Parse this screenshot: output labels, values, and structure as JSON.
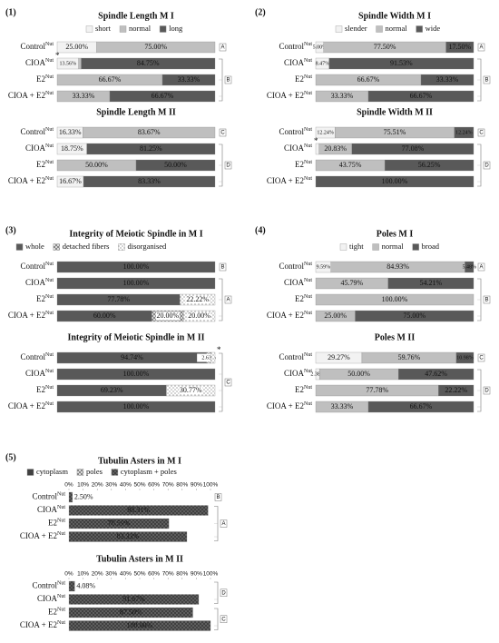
{
  "chart_data": [
    {
      "type": "bar",
      "panel": "(1)",
      "title": "Spindle Length M I",
      "show_legend": true,
      "xlim": [
        0,
        100
      ],
      "categories": [
        "Control",
        "CIOA",
        "E2",
        "CIOA + E2"
      ],
      "category_superscript": "Nut",
      "series": [
        {
          "name": "short",
          "color": "#f2f2f2",
          "values": [
            25.0,
            13.56,
            0,
            0
          ],
          "value_labels": [
            "25.00%",
            "13.56%",
            null,
            null
          ]
        },
        {
          "name": "normal",
          "color": "#bfbfbf",
          "values": [
            75.0,
            1.69,
            66.67,
            33.33
          ],
          "value_labels": [
            "75.00%",
            null,
            "66.67%",
            "33.33%"
          ]
        },
        {
          "name": "long",
          "color": "#595959",
          "values": [
            0,
            84.75,
            33.33,
            66.67
          ],
          "value_labels": [
            null,
            "84.75%",
            "33.33%",
            "66.67%"
          ]
        }
      ],
      "markers": [
        null,
        "*",
        null,
        null
      ],
      "letters": [
        "A",
        "B",
        "B",
        "B"
      ]
    },
    {
      "type": "bar",
      "title": "Spindle Length M II",
      "xlim": [
        0,
        100
      ],
      "categories": [
        "Control",
        "CIOA",
        "E2",
        "CIOA + E2"
      ],
      "category_superscript": "Nut",
      "series": [
        {
          "name": "short",
          "color": "#f2f2f2",
          "values": [
            16.33,
            18.75,
            0,
            16.67
          ],
          "value_labels": [
            "16.33%",
            "18.75%",
            null,
            "16.67%"
          ]
        },
        {
          "name": "normal",
          "color": "#bfbfbf",
          "values": [
            83.67,
            0,
            50.0,
            0
          ],
          "value_labels": [
            "83.67%",
            null,
            "50.00%",
            null
          ]
        },
        {
          "name": "long",
          "color": "#595959",
          "values": [
            0,
            81.25,
            50.0,
            83.33
          ],
          "value_labels": [
            null,
            "81.25%",
            "50.00%",
            "83.33%"
          ]
        }
      ],
      "letters": [
        "C",
        "D",
        "D",
        "D"
      ]
    },
    {
      "type": "bar",
      "panel": "(2)",
      "title": "Spindle Width M I",
      "show_legend": true,
      "xlim": [
        0,
        100
      ],
      "categories": [
        "Control",
        "CIOA",
        "E2",
        "CIOA + E2"
      ],
      "category_superscript": "Nut",
      "series": [
        {
          "name": "slender",
          "color": "#f2f2f2",
          "values": [
            5.0,
            8.47,
            0,
            0
          ],
          "value_labels": [
            "5.00%",
            "8.47%",
            null,
            null
          ]
        },
        {
          "name": "normal",
          "color": "#bfbfbf",
          "values": [
            77.5,
            0,
            66.67,
            33.33
          ],
          "value_labels": [
            "77.50%",
            null,
            "66.67%",
            "33.33%"
          ]
        },
        {
          "name": "wide",
          "color": "#595959",
          "values": [
            17.5,
            91.53,
            33.33,
            66.67
          ],
          "value_labels": [
            "17.50%",
            "91.53%",
            "33.33%",
            "66.67%"
          ]
        }
      ],
      "letters": [
        "A",
        "B",
        "B",
        "B"
      ]
    },
    {
      "type": "bar",
      "title": "Spindle Width M II",
      "xlim": [
        0,
        100
      ],
      "categories": [
        "Control",
        "CIOA",
        "E2",
        "CIOA + E2"
      ],
      "category_superscript": "Nut",
      "series": [
        {
          "name": "slender",
          "color": "#f2f2f2",
          "values": [
            12.24,
            2.08,
            0,
            0
          ],
          "value_labels": [
            "12.24%",
            null,
            null,
            null
          ]
        },
        {
          "name": "normal",
          "color": "#bfbfbf",
          "values": [
            75.51,
            20.83,
            43.75,
            0
          ],
          "value_labels": [
            "75.51%",
            "20.83%",
            "43.75%",
            null
          ]
        },
        {
          "name": "wide",
          "color": "#595959",
          "values": [
            12.24,
            77.08,
            56.25,
            100.0
          ],
          "value_labels": [
            "12.24%",
            "77.08%",
            "56.25%",
            "100.00%"
          ]
        }
      ],
      "markers": [
        null,
        "*",
        null,
        null
      ],
      "letters": [
        "C",
        "D",
        "D",
        "D"
      ]
    },
    {
      "type": "bar",
      "panel": "(3)",
      "title": "Integrity of Meiotic Spindle in M I",
      "show_legend": true,
      "xlim": [
        0,
        100
      ],
      "categories": [
        "Control",
        "CIOA",
        "E2",
        "CIOA + E2"
      ],
      "category_superscript": "Nut",
      "series": [
        {
          "name": "whole",
          "color": "#595959",
          "values": [
            100.0,
            100.0,
            77.78,
            60.0
          ],
          "value_labels": [
            "100.00%",
            "100.00%",
            "77.78%",
            "60.00%"
          ]
        },
        {
          "name": "detached fibers",
          "color": "#d9d9d9",
          "pattern": "hatch",
          "values": [
            0,
            0,
            0,
            20.0
          ],
          "value_labels": [
            null,
            null,
            null,
            "20.00%"
          ]
        },
        {
          "name": "disorganised",
          "color": "#ffffff",
          "pattern": "dots",
          "values": [
            0,
            0,
            22.22,
            20.0
          ],
          "value_labels": [
            null,
            null,
            "22.22%",
            "20.00%"
          ]
        }
      ],
      "letters": [
        "B",
        "A",
        "A",
        "A"
      ]
    },
    {
      "type": "bar",
      "title": "Integrity of Meiotic Spindle in M II",
      "xlim": [
        0,
        100
      ],
      "categories": [
        "Control",
        "CIOA",
        "E2",
        "CIOA + E2"
      ],
      "category_superscript": "Nut",
      "series": [
        {
          "name": "whole",
          "color": "#595959",
          "values": [
            94.74,
            100.0,
            69.23,
            100.0
          ],
          "value_labels": [
            "94.74%",
            "100.00%",
            "69.23%",
            "100.00%"
          ]
        },
        {
          "name": "detached fibers",
          "color": "#d9d9d9",
          "pattern": "hatch",
          "values": [
            2.63,
            0,
            0,
            0
          ],
          "value_labels": [
            "2.63%",
            null,
            null,
            null
          ]
        },
        {
          "name": "disorganised",
          "color": "#ffffff",
          "pattern": "dots",
          "values": [
            2.63,
            0,
            30.77,
            0
          ],
          "value_labels": [
            null,
            null,
            "30.77%",
            null
          ]
        }
      ],
      "markers": [
        "*",
        null,
        null,
        null
      ],
      "letters": [
        "C",
        "C",
        "C",
        "C"
      ]
    },
    {
      "type": "bar",
      "panel": "(4)",
      "title": "Poles M I",
      "show_legend": true,
      "xlim": [
        0,
        100
      ],
      "categories": [
        "Control",
        "CIOA",
        "E2",
        "CIOA + E2"
      ],
      "category_superscript": "Nut",
      "series": [
        {
          "name": "tight",
          "color": "#f2f2f2",
          "values": [
            9.59,
            0,
            0,
            0
          ],
          "value_labels": [
            "9.59%",
            null,
            null,
            null
          ]
        },
        {
          "name": "normal",
          "color": "#bfbfbf",
          "values": [
            84.93,
            45.79,
            100.0,
            25.0
          ],
          "value_labels": [
            "84.93%",
            "45.79%",
            "100.00%",
            "25.00%"
          ]
        },
        {
          "name": "broad",
          "color": "#595959",
          "values": [
            5.48,
            54.21,
            0,
            75.0
          ],
          "value_labels": [
            "5.48%",
            "54.21%",
            null,
            "75.00%"
          ]
        }
      ],
      "letters": [
        "A",
        "B",
        "B",
        "B"
      ]
    },
    {
      "type": "bar",
      "title": "Poles M II",
      "xlim": [
        0,
        100
      ],
      "categories": [
        "Control",
        "CIOA",
        "E2",
        "CIOA + E2"
      ],
      "category_superscript": "Nut",
      "series": [
        {
          "name": "tight",
          "color": "#f2f2f2",
          "values": [
            29.27,
            2.38,
            0,
            0
          ],
          "value_labels": [
            "29.27%",
            "2.38%",
            null,
            null
          ]
        },
        {
          "name": "normal",
          "color": "#bfbfbf",
          "values": [
            59.76,
            50.0,
            77.78,
            33.33
          ],
          "value_labels": [
            "59.76%",
            "50.00%",
            "77.78%",
            "33.33%"
          ]
        },
        {
          "name": "broad",
          "color": "#595959",
          "values": [
            10.98,
            47.62,
            22.22,
            66.67
          ],
          "value_labels": [
            "10.98%",
            "47.62%",
            "22.22%",
            "66.67%"
          ]
        }
      ],
      "letters": [
        "C",
        "D",
        "D",
        "D"
      ]
    },
    {
      "type": "bar",
      "panel": "(5)",
      "title": "Tubulin Asters in M I",
      "show_legend": true,
      "xlim": [
        0,
        100
      ],
      "xticks": [
        {
          "value": 0,
          "label": "0%"
        },
        {
          "value": 10,
          "label": "10%"
        },
        {
          "value": 20,
          "label": "20%"
        },
        {
          "value": 30,
          "label": "30%"
        },
        {
          "value": 40,
          "label": "40%"
        },
        {
          "value": 50,
          "label": "50%"
        },
        {
          "value": 60,
          "label": "60%"
        },
        {
          "value": 70,
          "label": "70%"
        },
        {
          "value": 80,
          "label": "80%"
        },
        {
          "value": 90,
          "label": "90%"
        },
        {
          "value": 100,
          "label": "100%"
        }
      ],
      "categories": [
        "Control",
        "CIOA",
        "E2",
        "CIOA + E2"
      ],
      "category_superscript": "Nut",
      "series": [
        {
          "name": "cytoplasm",
          "color": "#404040",
          "values": [
            0,
            0,
            0,
            0
          ],
          "value_labels": [
            null,
            null,
            null,
            null
          ]
        },
        {
          "name": "poles",
          "color": "#d9d9d9",
          "pattern": "hatch",
          "values": [
            0,
            0,
            0,
            0
          ],
          "value_labels": [
            null,
            null,
            null,
            null
          ]
        },
        {
          "name": "cytoplasm + poles",
          "color": "#404040",
          "pattern": "dots",
          "values": [
            2.5,
            98.31,
            70.59,
            83.33
          ],
          "value_labels": [
            "2.50%",
            "98.31%",
            "70.59%",
            "83.33%"
          ]
        }
      ],
      "letters": [
        "B",
        "A",
        "A",
        "A"
      ]
    },
    {
      "type": "bar",
      "title": "Tubulin Asters in M II",
      "xlim": [
        0,
        100
      ],
      "xticks": [
        {
          "value": 0,
          "label": "0%"
        },
        {
          "value": 10,
          "label": "10%"
        },
        {
          "value": 20,
          "label": "20%"
        },
        {
          "value": 30,
          "label": "30%"
        },
        {
          "value": 40,
          "label": "40%"
        },
        {
          "value": 50,
          "label": "50%"
        },
        {
          "value": 60,
          "label": "60%"
        },
        {
          "value": 70,
          "label": "70%"
        },
        {
          "value": 80,
          "label": "80%"
        },
        {
          "value": 90,
          "label": "90%"
        },
        {
          "value": 100,
          "label": "100%"
        }
      ],
      "categories": [
        "Control",
        "CIOA",
        "E2",
        "CIOA + E2"
      ],
      "category_superscript": "Nut",
      "series": [
        {
          "name": "cytoplasm",
          "color": "#404040",
          "values": [
            0,
            0,
            0,
            0
          ],
          "value_labels": [
            null,
            null,
            null,
            null
          ]
        },
        {
          "name": "poles",
          "color": "#d9d9d9",
          "pattern": "hatch",
          "values": [
            0,
            0,
            0,
            0
          ],
          "value_labels": [
            null,
            null,
            null,
            null
          ]
        },
        {
          "name": "cytoplasm + poles",
          "color": "#404040",
          "pattern": "dots",
          "values": [
            4.08,
            91.67,
            87.5,
            100.0
          ],
          "value_labels": [
            "4.08%",
            "91.67%",
            "87.50%",
            "100.00%"
          ]
        }
      ],
      "letters": [
        "D",
        "D",
        "C",
        "C"
      ]
    }
  ]
}
